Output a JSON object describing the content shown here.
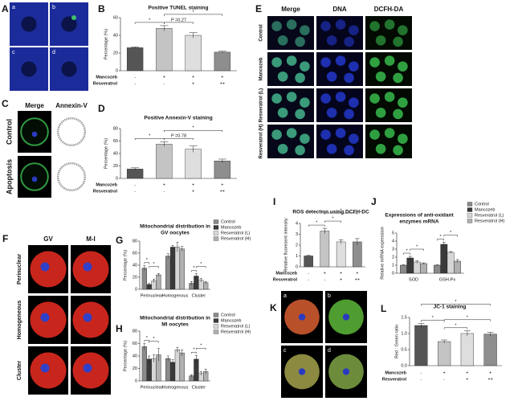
{
  "panels": {
    "A": {
      "label": "A",
      "images": [
        "a",
        "b",
        "c",
        "d"
      ]
    },
    "C": {
      "label": "C",
      "columns": [
        "Merge",
        "Annexin-V"
      ],
      "rows": [
        "Control",
        "Apoptosis"
      ]
    },
    "E": {
      "label": "E",
      "columns": [
        "Merge",
        "DNA",
        "DCFH-DA"
      ],
      "rows": [
        "Control",
        "Mancozeb",
        "Resveratrol (L)",
        "Resveratrol (H)"
      ]
    },
    "F": {
      "label": "F",
      "columns": [
        "GV",
        "M-I"
      ],
      "rows": [
        "Perinuclear",
        "Homogeneous",
        "Cluster"
      ]
    },
    "K": {
      "label": "K",
      "images": [
        "a",
        "b",
        "c",
        "d"
      ]
    }
  },
  "chart_data": [
    {
      "type": "bar",
      "label": "B",
      "title": "Positive TUNEL staining",
      "ylabel": "Percentage (%)",
      "values": [
        26,
        48,
        40,
        21
      ],
      "errors": [
        1,
        3,
        3,
        1
      ],
      "colors": [
        "#555555",
        "#c4c4c4",
        "#dedede",
        "#8e8e8e"
      ],
      "ylim": [
        0,
        60
      ],
      "yticks": [
        0,
        20,
        40,
        60
      ],
      "annotations": [
        "*",
        "P =0.27",
        "*"
      ],
      "treatments": [
        {
          "name": "Mancozeb",
          "signs": [
            "-",
            "+",
            "+",
            "+"
          ]
        },
        {
          "name": "Resveratrol",
          "signs": [
            "-",
            "-",
            "+",
            "++"
          ]
        }
      ]
    },
    {
      "type": "bar",
      "label": "D",
      "title": "Positive Annexin-V staining",
      "ylabel": "Percentage (%)",
      "values": [
        15,
        55,
        47,
        28
      ],
      "errors": [
        2,
        4,
        5,
        3
      ],
      "colors": [
        "#555555",
        "#c4c4c4",
        "#dedede",
        "#8e8e8e"
      ],
      "ylim": [
        0,
        80
      ],
      "yticks": [
        0,
        20,
        40,
        60,
        80
      ],
      "annotations": [
        "*",
        "P =0.78",
        "*"
      ],
      "treatments": [
        {
          "name": "Mancozeb",
          "signs": [
            "-",
            "+",
            "+",
            "+"
          ]
        },
        {
          "name": "Resveratrol",
          "signs": [
            "-",
            "-",
            "+",
            "++"
          ]
        }
      ]
    },
    {
      "type": "bar",
      "label": "G",
      "title": [
        "Mitochondrial distribution in",
        "GV oocytes"
      ],
      "ylabel": "Percentage (%)",
      "categories": [
        "Perinuclear",
        "Homogenous",
        "Cluster"
      ],
      "series": [
        {
          "name": "Control",
          "color": "#8a8a8a",
          "values": [
            35,
            55,
            10
          ],
          "errors": [
            4,
            4,
            3
          ]
        },
        {
          "name": "Mancozeb",
          "color": "#3a3a3a",
          "values": [
            8,
            70,
            22
          ],
          "errors": [
            2,
            3,
            4
          ]
        },
        {
          "name": "Resveratrol (L)",
          "color": "#d6d6d6",
          "values": [
            14,
            70,
            15
          ],
          "errors": [
            3,
            8,
            3
          ]
        },
        {
          "name": "Resveratrol (H)",
          "color": "#b0b0b0",
          "values": [
            24,
            67,
            11
          ],
          "errors": [
            2,
            4,
            2
          ]
        }
      ],
      "ylim": [
        0,
        80
      ],
      "yticks": [
        0,
        20,
        40,
        60,
        80
      ],
      "annotations": [
        "*",
        "*",
        "*",
        "*"
      ]
    },
    {
      "type": "bar",
      "label": "H",
      "title": [
        "Mitochondrial distribution in",
        "MI oocytes"
      ],
      "ylabel": "Percentage (%)",
      "categories": [
        "Perinuclear",
        "Homogenous",
        "Cluster"
      ],
      "series": [
        {
          "name": "Control",
          "color": "#8a8a8a",
          "values": [
            55,
            36,
            8
          ],
          "errors": [
            5,
            4,
            2
          ]
        },
        {
          "name": "Mancozeb",
          "color": "#3a3a3a",
          "values": [
            35,
            30,
            35
          ],
          "errors": [
            5,
            4,
            6
          ]
        },
        {
          "name": "Resveratrol (L)",
          "color": "#d6d6d6",
          "values": [
            36,
            50,
            12
          ],
          "errors": [
            6,
            4,
            3
          ]
        },
        {
          "name": "Resveratrol (H)",
          "color": "#b0b0b0",
          "values": [
            42,
            45,
            15
          ],
          "errors": [
            10,
            5,
            4
          ]
        }
      ],
      "ylim": [
        0,
        80
      ],
      "yticks": [
        0,
        20,
        40,
        60,
        80
      ],
      "annotations": [
        "*",
        "*",
        "*",
        "*"
      ]
    },
    {
      "type": "bar",
      "label": "I",
      "title": "ROS detection using DCFH-DC",
      "ylabel": "Relative fluoresent intensity",
      "values": [
        1,
        3.3,
        2.3,
        2.3
      ],
      "errors": [
        0.05,
        0.25,
        0.2,
        0.3
      ],
      "colors": [
        "#555555",
        "#c4c4c4",
        "#dedede",
        "#8e8e8e"
      ],
      "ylim": [
        0,
        4
      ],
      "yticks": [
        0,
        1,
        2,
        3,
        4
      ],
      "annotations": [
        "*",
        "*",
        "*"
      ],
      "treatments": [
        {
          "name": "Mancozeb",
          "signs": [
            "-",
            "+",
            "+",
            "+"
          ]
        },
        {
          "name": "Resveratrol",
          "signs": [
            "-",
            "-",
            "+",
            "++"
          ]
        }
      ]
    },
    {
      "type": "bar",
      "label": "J",
      "title": [
        "Expressions of anti-oxidant",
        "enzymes mRNA"
      ],
      "ylabel": "Relative mRNA expression",
      "categories": [
        "SOD",
        "GSH-Px"
      ],
      "series": [
        {
          "name": "Control",
          "color": "#8a8a8a",
          "values": [
            1,
            1
          ],
          "errors": [
            0.05,
            0.05
          ]
        },
        {
          "name": "Mancozeb",
          "color": "#3a3a3a",
          "values": [
            1.9,
            3.6
          ],
          "errors": [
            0.2,
            0.25
          ]
        },
        {
          "name": "Resveratrol (L)",
          "color": "#d6d6d6",
          "values": [
            1.4,
            2.6
          ],
          "errors": [
            0.15,
            0.1
          ]
        },
        {
          "name": "Resveratrol (H)",
          "color": "#b0b0b0",
          "values": [
            1.2,
            1.5
          ],
          "errors": [
            0.1,
            0.2
          ]
        }
      ],
      "ylim": [
        0,
        5
      ],
      "yticks": [
        0,
        1,
        2,
        3,
        4,
        5
      ],
      "annotations": [
        "*",
        "*",
        "*",
        "*"
      ]
    },
    {
      "type": "bar",
      "label": "L",
      "title": "JC-1 staining",
      "ylabel": "Red : Green ratio",
      "values": [
        1.25,
        0.75,
        1.0,
        0.98
      ],
      "errors": [
        0.06,
        0.05,
        0.08,
        0.06
      ],
      "colors": [
        "#555555",
        "#c4c4c4",
        "#dedede",
        "#8e8e8e"
      ],
      "ylim": [
        0,
        1.5
      ],
      "yticks": [
        {
          "value": 0,
          "label": "0.0"
        },
        0.5,
        {
          "value": 1,
          "label": "1.0"
        },
        1.5
      ],
      "annotations": [
        "*",
        "*",
        "*",
        "*"
      ],
      "treatments": [
        {
          "name": "Mancozeb",
          "signs": [
            "-",
            "+",
            "+",
            "+"
          ]
        },
        {
          "name": "Resveratrol",
          "signs": [
            "-",
            "-",
            "+",
            "++"
          ]
        }
      ]
    }
  ]
}
